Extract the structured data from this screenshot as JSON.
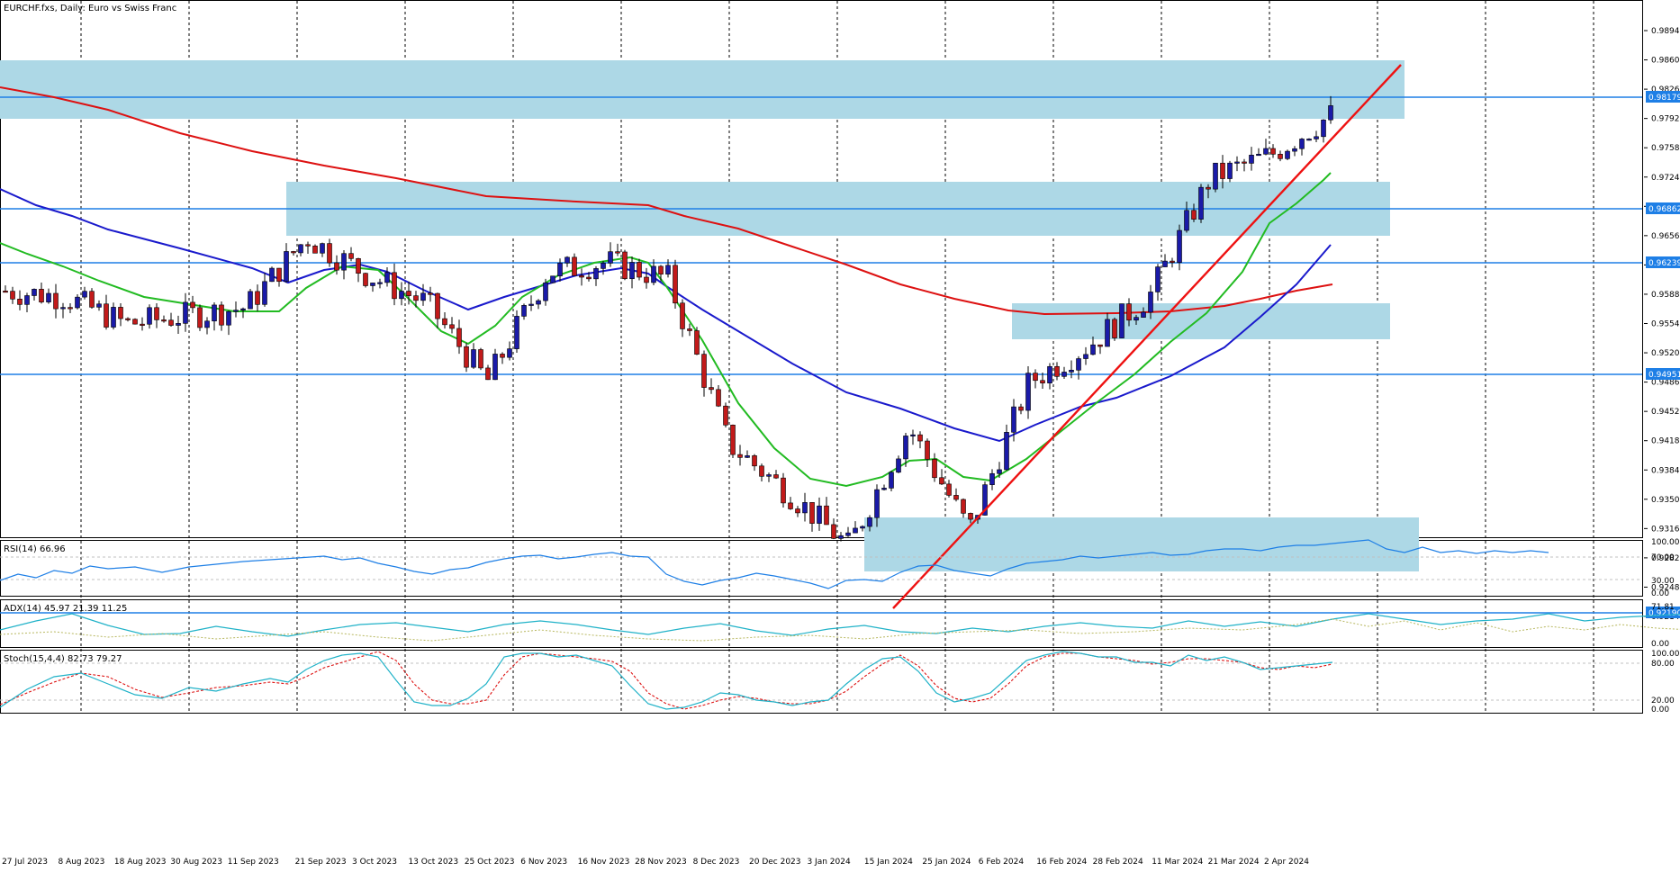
{
  "header": {
    "symbol_label": "EURCHF.fxs, Daily:  Euro vs Swiss Franc"
  },
  "price_axis": {
    "ticks": [
      "0.98940",
      "0.98600",
      "0.98260",
      "0.97920",
      "0.97580",
      "0.97240",
      "0.96900",
      "0.96560",
      "0.96220",
      "0.95880",
      "0.95540",
      "0.95200",
      "0.94860",
      "0.94520",
      "0.94180",
      "0.93840",
      "0.93500",
      "0.93160",
      "0.92820",
      "0.92480",
      "0.92140"
    ],
    "ylim": [
      0.921,
      0.9921
    ]
  },
  "date_axis": {
    "ticks": [
      "27 Jul 2023",
      "8 Aug 2023",
      "18 Aug 2023",
      "30 Aug 2023",
      "11 Sep 2023",
      "21 Sep 2023",
      "3 Oct 2023",
      "13 Oct 2023",
      "25 Oct 2023",
      "6 Nov 2023",
      "16 Nov 2023",
      "28 Nov 2023",
      "8 Dec 2023",
      "20 Dec 2023",
      "3 Jan 2024",
      "15 Jan 2024",
      "25 Jan 2024",
      "6 Feb 2024",
      "16 Feb 2024",
      "28 Feb 2024",
      "11 Mar 2024",
      "21 Mar 2024",
      "2 Apr 2024"
    ]
  },
  "levels": {
    "labels": [
      "0.98179",
      "0.96862",
      "0.96239",
      "0.94951",
      "0.92190"
    ]
  },
  "indicators": {
    "rsi": {
      "label": "RSI(14) 66.96",
      "axis": [
        "100.00",
        "70.00",
        "30.00",
        "0.00"
      ]
    },
    "adx": {
      "label": "ADX(14) 45.97 21.39 11.25",
      "axis": [
        "71.81",
        "0.00"
      ]
    },
    "stoch": {
      "label": "Stoch(15,4,4) 82.73 79.27",
      "axis": [
        "100.00",
        "80.00",
        "20.00",
        "0.00"
      ]
    }
  },
  "colors": {
    "bull": "#1a1aa8",
    "bear": "#c21a1a",
    "zone": "#add8e6",
    "level": "#1e7fe6",
    "ma_fast": "#22bb22",
    "ma_mid": "#1a1acc",
    "ma_slow": "#dd1111",
    "trend": "#ee1111",
    "rsi_line": "#1e7fe6",
    "adx_line": "#20b2c8",
    "adx_di": "#b8b860",
    "stoch_main": "#20b2c8",
    "stoch_signal": "#dd1111"
  },
  "chart_data": {
    "type": "line",
    "title": "EURCHF.fxs, Daily:  Euro vs Swiss Franc",
    "x": [
      "27 Jul 2023",
      "8 Aug 2023",
      "18 Aug 2023",
      "30 Aug 2023",
      "11 Sep 2023",
      "21 Sep 2023",
      "3 Oct 2023",
      "13 Oct 2023",
      "25 Oct 2023",
      "6 Nov 2023",
      "16 Nov 2023",
      "28 Nov 2023",
      "8 Dec 2023",
      "20 Dec 2023",
      "3 Jan 2024",
      "15 Jan 2024",
      "25 Jan 2024",
      "6 Feb 2024",
      "16 Feb 2024",
      "28 Feb 2024",
      "11 Mar 2024",
      "21 Mar 2024",
      "2 Apr 2024"
    ],
    "series": [
      {
        "values": [
          0.9605,
          0.9598,
          0.9565,
          0.9575,
          0.9585,
          0.967,
          0.9625,
          0.959,
          0.9495,
          0.9628,
          0.964,
          0.962,
          0.942,
          0.936,
          0.9295,
          0.944,
          0.9315,
          0.9495,
          0.954,
          0.96,
          0.9742,
          0.977,
          0.9818
        ]
      }
    ],
    "ylim": [
      0.921,
      0.9921
    ],
    "levels": [
      0.98179,
      0.96862,
      0.96239,
      0.94951,
      0.9219
    ],
    "zones": [
      [
        0.9788,
        0.9853
      ],
      [
        0.9657,
        0.972
      ],
      [
        0.9535,
        0.9577
      ],
      [
        0.927,
        0.9332
      ]
    ]
  }
}
